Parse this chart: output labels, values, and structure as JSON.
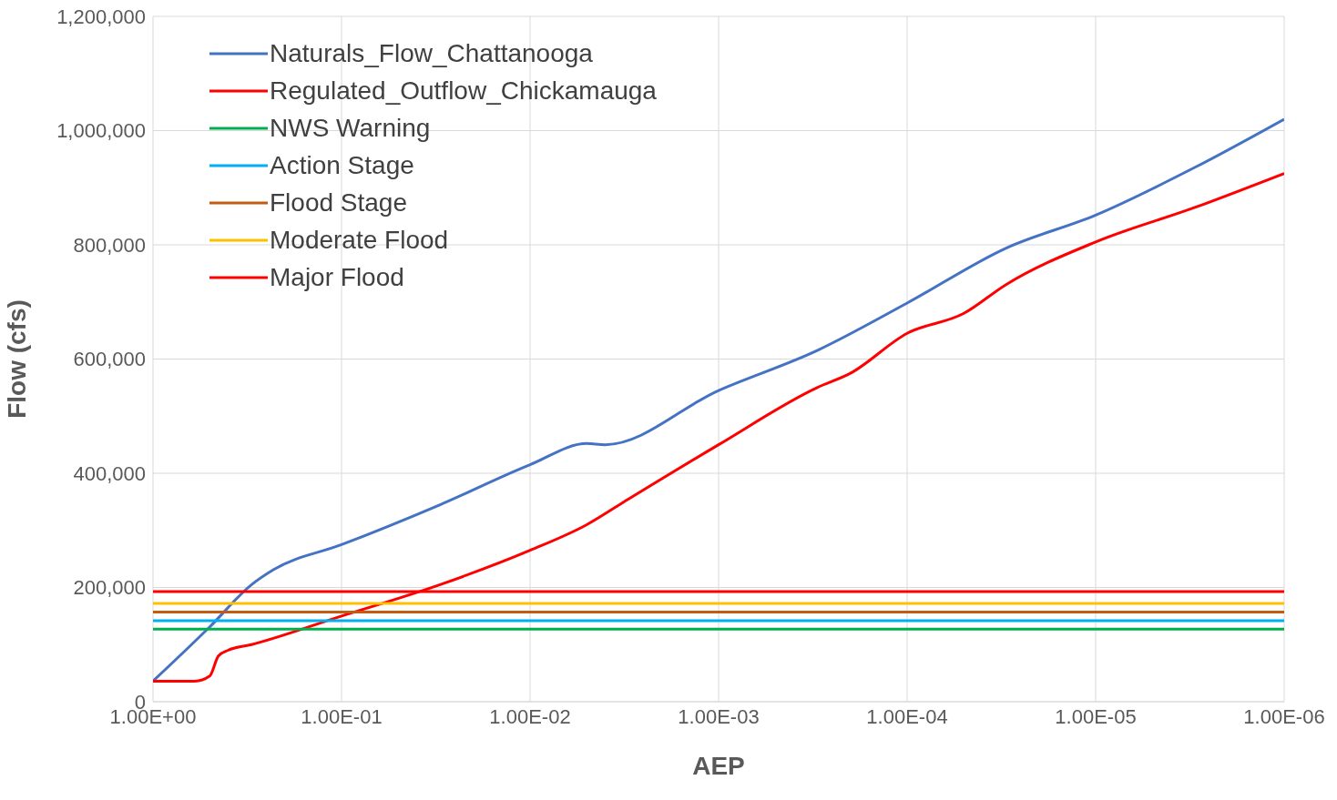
{
  "chart_data": {
    "type": "line",
    "xlabel": "AEP",
    "ylabel": "Flow (cfs)",
    "log": "x",
    "grid": true,
    "legend": "top left",
    "marker": "none",
    "xlim": [
      1,
      1e-06
    ],
    "xticks": [
      {
        "value": 1,
        "label": "1.00E+00"
      },
      {
        "value": 0.1,
        "label": "1.00E-01"
      },
      {
        "value": 0.01,
        "label": "1.00E-02"
      },
      {
        "value": 0.001,
        "label": "1.00E-03"
      },
      {
        "value": 0.0001,
        "label": "1.00E-04"
      },
      {
        "value": 1e-05,
        "label": "1.00E-05"
      },
      {
        "value": 1e-06,
        "label": "1.00E-06"
      }
    ],
    "ylim": [
      0,
      1200000
    ],
    "yticks": [
      0,
      {
        "value": 200000,
        "label": "200,000"
      },
      {
        "value": 400000,
        "label": "400,000"
      },
      {
        "value": 600000,
        "label": "600,000"
      },
      {
        "value": 800000,
        "label": "800,000"
      },
      {
        "value": 1000000,
        "label": "1,000,000"
      },
      {
        "value": 1200000,
        "label": "1,200,000"
      }
    ],
    "series": [
      {
        "name": "Naturals_Flow_Chattanooga",
        "color": "#4472c4",
        "x": [
          1,
          0.5,
          0.3,
          0.23,
          0.1,
          0.03,
          0.01,
          0.005,
          0.004,
          0.001,
          0.0003,
          0.0001,
          3e-05,
          1e-05,
          3e-06,
          1e-06
        ],
        "values": [
          36000,
          131000,
          205000,
          231000,
          275000,
          345000,
          415000,
          452000,
          450000,
          545000,
          615000,
          698000,
          794000,
          852000,
          935000,
          1020000
        ]
      },
      {
        "name": "Regulated_Outflow_Chickamauga",
        "color": "#ff0000",
        "x": [
          1,
          0.6,
          0.5,
          0.45,
          0.4,
          0.3,
          0.1,
          0.03,
          0.01,
          0.005,
          0.003,
          0.001,
          0.0003,
          0.0002,
          0.0001,
          5e-05,
          3e-05,
          1e-05,
          3e-06,
          1e-06
        ],
        "values": [
          36000,
          36000,
          45000,
          80000,
          90000,
          100000,
          150000,
          205000,
          265000,
          310000,
          355000,
          450000,
          550000,
          575000,
          645000,
          680000,
          730000,
          805000,
          865000,
          925000
        ]
      },
      {
        "name": "NWS Warning",
        "color": "#00b050",
        "x": [
          1,
          1e-06
        ],
        "values": [
          127000,
          127000
        ]
      },
      {
        "name": "Action Stage",
        "color": "#00b0f0",
        "x": [
          1,
          1e-06
        ],
        "values": [
          142000,
          142000
        ]
      },
      {
        "name": "Flood Stage",
        "color": "#c55a11",
        "x": [
          1,
          1e-06
        ],
        "values": [
          157000,
          157000
        ]
      },
      {
        "name": "Moderate Flood",
        "color": "#ffc000",
        "x": [
          1,
          1e-06
        ],
        "values": [
          172000,
          172000
        ]
      },
      {
        "name": "Major Flood",
        "color": "#ff0000",
        "x": [
          1,
          1e-06
        ],
        "values": [
          193000,
          193000
        ]
      }
    ]
  }
}
